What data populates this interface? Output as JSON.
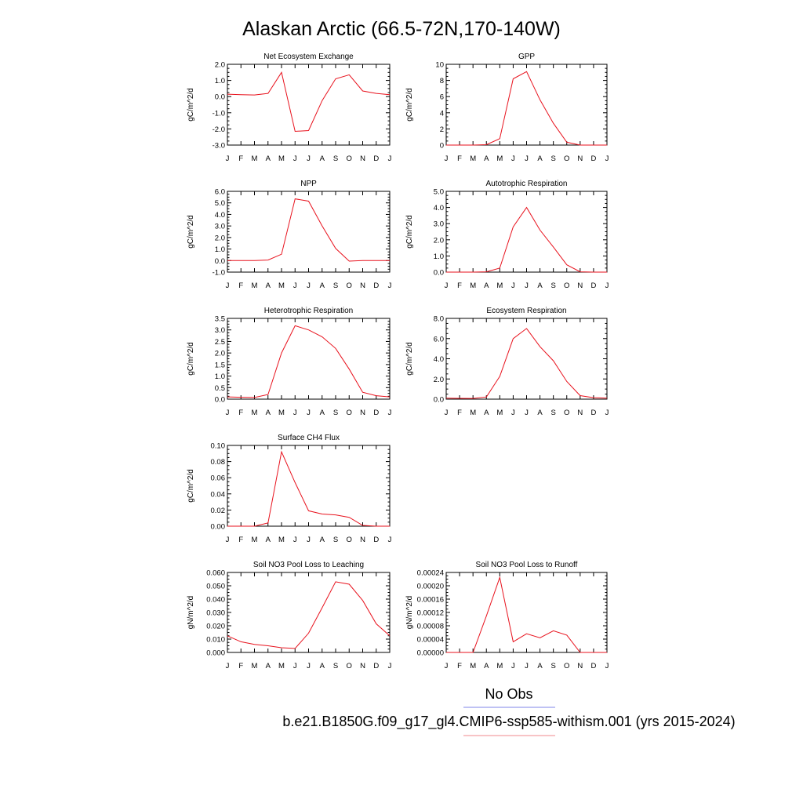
{
  "title": "Alaskan Arctic (66.5-72N,170-140W)",
  "colors": {
    "model": "#e8121d",
    "obs": "#7f86e9",
    "model_legend": "#f28a8e",
    "axis": "#000000"
  },
  "months": [
    "J",
    "F",
    "M",
    "A",
    "M",
    "J",
    "J",
    "A",
    "S",
    "O",
    "N",
    "D",
    "J"
  ],
  "legend": {
    "obs_label": "No Obs",
    "model_label": "b.e21.B1850G.f09_g17_gl4.CMIP6-ssp585-withism.001 (yrs 2015-2024)"
  },
  "chart_data": [
    {
      "type": "line",
      "title": "Net Ecosystem Exchange",
      "ylabel": "gC/m^2/d",
      "ylim": [
        -3.0,
        2.0
      ],
      "yticks": [
        "-3.0",
        "-2.0",
        "-1.0",
        "0.0",
        "1.0",
        "2.0"
      ],
      "x": [
        "J",
        "F",
        "M",
        "A",
        "M",
        "J",
        "J",
        "A",
        "S",
        "O",
        "N",
        "D",
        "J"
      ],
      "values": [
        0.15,
        0.12,
        0.1,
        0.2,
        1.5,
        -2.15,
        -2.1,
        -0.25,
        1.1,
        1.35,
        0.35,
        0.2,
        0.12
      ]
    },
    {
      "type": "line",
      "title": "GPP",
      "ylabel": "gC/m^2/d",
      "ylim": [
        0,
        10
      ],
      "yticks": [
        "0",
        "2",
        "4",
        "6",
        "8",
        "10"
      ],
      "x": [
        "J",
        "F",
        "M",
        "A",
        "M",
        "J",
        "J",
        "A",
        "S",
        "O",
        "N",
        "D",
        "J"
      ],
      "values": [
        0.0,
        0.0,
        0.0,
        0.05,
        0.8,
        8.2,
        9.1,
        5.6,
        2.7,
        0.35,
        0.0,
        0.0,
        0.0
      ]
    },
    {
      "type": "line",
      "title": "NPP",
      "ylabel": "gC/m^2/d",
      "ylim": [
        -1.0,
        6.0
      ],
      "yticks": [
        "-1.0",
        "0.0",
        "1.0",
        "2.0",
        "3.0",
        "4.0",
        "5.0",
        "6.0"
      ],
      "x": [
        "J",
        "F",
        "M",
        "A",
        "M",
        "J",
        "J",
        "A",
        "S",
        "O",
        "N",
        "D",
        "J"
      ],
      "values": [
        0.0,
        0.0,
        0.0,
        0.05,
        0.55,
        5.35,
        5.15,
        3.0,
        1.05,
        -0.05,
        0.0,
        0.0,
        0.0
      ]
    },
    {
      "type": "line",
      "title": "Autotrophic Respiration",
      "ylabel": "gC/m^2/d",
      "ylim": [
        0.0,
        5.0
      ],
      "yticks": [
        "0.0",
        "1.0",
        "2.0",
        "3.0",
        "4.0",
        "5.0"
      ],
      "x": [
        "J",
        "F",
        "M",
        "A",
        "M",
        "J",
        "J",
        "A",
        "S",
        "O",
        "N",
        "D",
        "J"
      ],
      "values": [
        0.0,
        0.0,
        0.0,
        0.02,
        0.25,
        2.8,
        4.0,
        2.6,
        1.55,
        0.45,
        0.02,
        0.0,
        0.0
      ]
    },
    {
      "type": "line",
      "title": "Heterotrophic Respiration",
      "ylabel": "gC/m^2/d",
      "ylim": [
        0.0,
        3.5
      ],
      "yticks": [
        "0.0",
        "0.5",
        "1.0",
        "1.5",
        "2.0",
        "2.5",
        "3.0",
        "3.5"
      ],
      "x": [
        "J",
        "F",
        "M",
        "A",
        "M",
        "J",
        "J",
        "A",
        "S",
        "O",
        "N",
        "D",
        "J"
      ],
      "values": [
        0.1,
        0.08,
        0.07,
        0.2,
        2.0,
        3.18,
        3.0,
        2.7,
        2.2,
        1.3,
        0.3,
        0.15,
        0.1
      ]
    },
    {
      "type": "line",
      "title": "Ecosystem Respiration",
      "ylabel": "gC/m^2/d",
      "ylim": [
        0.0,
        8.0
      ],
      "yticks": [
        "0.0",
        "2.0",
        "4.0",
        "6.0",
        "8.0"
      ],
      "x": [
        "J",
        "F",
        "M",
        "A",
        "M",
        "J",
        "J",
        "A",
        "S",
        "O",
        "N",
        "D",
        "J"
      ],
      "values": [
        0.1,
        0.08,
        0.07,
        0.22,
        2.25,
        6.0,
        7.0,
        5.2,
        3.8,
        1.75,
        0.35,
        0.15,
        0.1
      ]
    },
    {
      "type": "line",
      "title": "Surface CH4 Flux",
      "ylabel": "gC/m^2/d",
      "ylim": [
        0.0,
        0.1
      ],
      "yticks": [
        "0.00",
        "0.02",
        "0.04",
        "0.06",
        "0.08",
        "0.10"
      ],
      "x": [
        "J",
        "F",
        "M",
        "A",
        "M",
        "J",
        "J",
        "A",
        "S",
        "O",
        "N",
        "D",
        "J"
      ],
      "values": [
        0.0,
        0.0,
        0.0,
        0.004,
        0.092,
        0.054,
        0.019,
        0.015,
        0.014,
        0.011,
        0.001,
        0.0,
        0.0
      ]
    },
    {
      "type": "line",
      "title": "Soil NO3 Pool Loss to Leaching",
      "ylabel": "gN/m^2/d",
      "ylim": [
        0.0,
        0.06
      ],
      "yticks": [
        "0.000",
        "0.010",
        "0.020",
        "0.030",
        "0.040",
        "0.050",
        "0.060"
      ],
      "x": [
        "J",
        "F",
        "M",
        "A",
        "M",
        "J",
        "J",
        "A",
        "S",
        "O",
        "N",
        "D",
        "J"
      ],
      "values": [
        0.0125,
        0.008,
        0.006,
        0.005,
        0.0035,
        0.003,
        0.0145,
        0.0335,
        0.053,
        0.0512,
        0.039,
        0.0215,
        0.0125
      ]
    },
    {
      "type": "line",
      "title": "Soil NO3 Pool Loss to Runoff",
      "ylabel": "gN/m^2/d",
      "ylim": [
        0.0,
        0.00024
      ],
      "yticks": [
        "0.00000",
        "0.00004",
        "0.00008",
        "0.00012",
        "0.00016",
        "0.00020",
        "0.00024"
      ],
      "x": [
        "J",
        "F",
        "M",
        "A",
        "M",
        "J",
        "J",
        "A",
        "S",
        "O",
        "N",
        "D",
        "J"
      ],
      "values": [
        0.0,
        0.0,
        0.0,
        0.00011,
        0.000225,
        3.2e-05,
        5.6e-05,
        4.4e-05,
        6.5e-05,
        5.2e-05,
        0.0,
        0.0,
        0.0
      ]
    }
  ]
}
